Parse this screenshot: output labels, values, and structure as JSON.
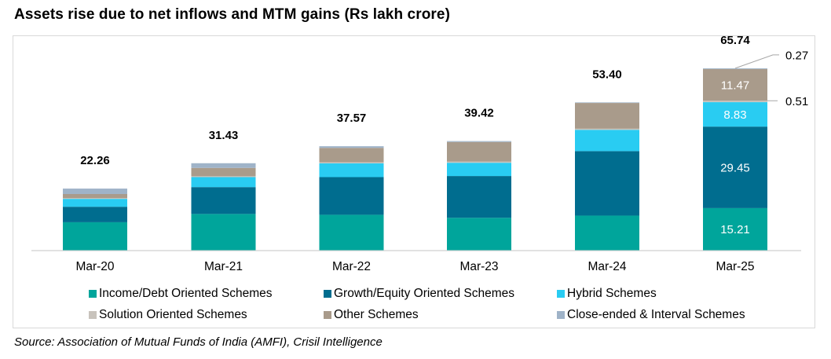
{
  "title": "Assets rise due to net inflows and MTM gains (Rs lakh crore)",
  "source": "Source: Association of Mutual Funds of India (AMFI), Crisil Intelligence",
  "chart_data": {
    "type": "bar",
    "stacked": true,
    "title": "Assets rise due to net inflows and MTM gains (Rs lakh crore)",
    "xlabel": "",
    "ylabel": "",
    "ylim": [
      0,
      70
    ],
    "grid": false,
    "legend_position": "bottom",
    "categories": [
      "Mar-20",
      "Mar-21",
      "Mar-22",
      "Mar-23",
      "Mar-24",
      "Mar-25"
    ],
    "totals": [
      22.26,
      31.43,
      37.57,
      39.42,
      53.4,
      65.74
    ],
    "total_labels": [
      "22.26",
      "31.43",
      "37.57",
      "39.42",
      "53.40",
      "65.74"
    ],
    "series": [
      {
        "name": "Income/Debt Oriented Schemes",
        "color": "#00a59b",
        "values": [
          10.1,
          13.1,
          12.8,
          11.7,
          12.5,
          15.21
        ]
      },
      {
        "name": "Growth/Equity Oriented Schemes",
        "color": "#006d8f",
        "values": [
          5.6,
          9.7,
          13.6,
          15.1,
          23.3,
          29.45
        ]
      },
      {
        "name": "Hybrid Schemes",
        "color": "#29ccf2",
        "values": [
          2.85,
          3.6,
          5.0,
          4.8,
          7.7,
          8.83
        ]
      },
      {
        "name": "Solution Oriented Schemes",
        "color": "#c8c3bc",
        "values": [
          0.25,
          0.33,
          0.37,
          0.4,
          0.4,
          0.51
        ]
      },
      {
        "name": "Other Schemes",
        "color": "#a99b8b",
        "values": [
          1.5,
          3.0,
          5.2,
          7.1,
          9.3,
          11.47
        ]
      },
      {
        "name": "Close-ended & Interval Schemes",
        "color": "#9fb3c8",
        "values": [
          1.96,
          1.7,
          0.6,
          0.32,
          0.2,
          0.27
        ]
      }
    ],
    "data_labels": {
      "Mar-25": {
        "Income/Debt Oriented Schemes": "15.21",
        "Growth/Equity Oriented Schemes": "29.45",
        "Hybrid Schemes": "8.83",
        "Other Schemes": "11.47",
        "Solution Oriented Schemes": "0.51",
        "Close-ended & Interval Schemes": "0.27"
      }
    }
  }
}
